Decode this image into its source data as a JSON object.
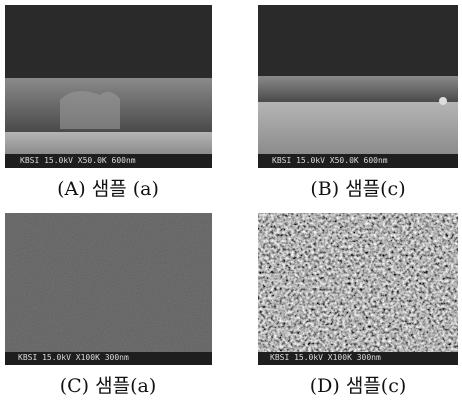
{
  "panels": [
    {
      "caption": "(A) 샘플 (a)",
      "info_bar": "KBSI   15.0kV X50.0K  600nm"
    },
    {
      "caption": "(B) 샘플(c)",
      "info_bar": "KBSI   15.0kV X50.0K  600nm"
    },
    {
      "caption": "(C) 샘플(a)",
      "info_bar": "KBSI   15.0kV  X100K  300nm"
    },
    {
      "caption": "(D) 샘플(c)",
      "info_bar": "KBSI   15.0kV  X100K  300nm"
    }
  ]
}
